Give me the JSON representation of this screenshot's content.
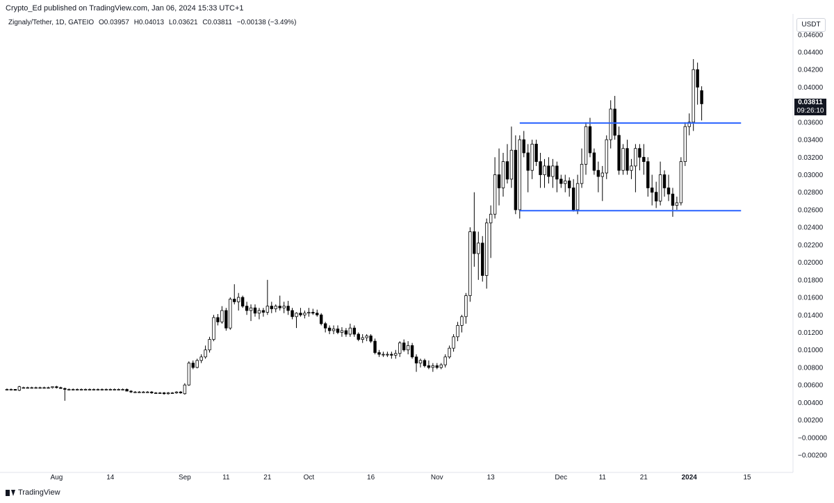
{
  "header": {
    "publisher_line": "Crypto_Ed published on TradingView.com, Jan 06, 2024 15:33 UTC+1"
  },
  "legend": {
    "symbol": "Zignaly/Tether, 1D, GATEIO",
    "open": "O0.03957",
    "high": "H0.04013",
    "low": "L0.03621",
    "close": "C0.03811",
    "change": "−0.00138 (−3.49%)"
  },
  "price_axis": {
    "currency": "USDT",
    "current_price": "0.03811",
    "countdown": "09:26:10"
  },
  "footer": {
    "brand": "TradingView"
  },
  "colors": {
    "rectangle": "#2962ff",
    "candle_up": "#ffffff",
    "candle_down": "#000000",
    "wick": "#000000"
  },
  "chart_data": {
    "type": "candlestick",
    "y_ticks": [
      "0.04600",
      "0.04400",
      "0.04200",
      "0.04000",
      "0.03800",
      "0.03600",
      "0.03400",
      "0.03200",
      "0.03000",
      "0.02800",
      "0.02600",
      "0.02400",
      "0.02200",
      "0.02000",
      "0.01800",
      "0.01600",
      "0.01400",
      "0.01200",
      "0.01000",
      "0.00800",
      "0.00600",
      "0.00400",
      "0.00200",
      "−0.00000",
      "−0.00200"
    ],
    "y_tick_values": [
      0.046,
      0.044,
      0.042,
      0.04,
      0.038,
      0.036,
      0.034,
      0.032,
      0.03,
      0.028,
      0.026,
      0.024,
      0.022,
      0.02,
      0.018,
      0.016,
      0.014,
      0.012,
      0.01,
      0.008,
      0.006,
      0.004,
      0.002,
      0.0,
      -0.002
    ],
    "ylim": [
      -0.0025,
      0.0475
    ],
    "x_ticks": [
      {
        "label": "Aug",
        "index": 12
      },
      {
        "label": "14",
        "index": 25
      },
      {
        "label": "Sep",
        "index": 43
      },
      {
        "label": "11",
        "index": 53
      },
      {
        "label": "21",
        "index": 63
      },
      {
        "label": "Oct",
        "index": 73
      },
      {
        "label": "16",
        "index": 88
      },
      {
        "label": "Nov",
        "index": 104
      },
      {
        "label": "13",
        "index": 117
      },
      {
        "label": "Dec",
        "index": 134
      },
      {
        "label": "11",
        "index": 144
      },
      {
        "label": "21",
        "index": 154
      },
      {
        "label": "2024",
        "index": 165
      },
      {
        "label": "15",
        "index": 179
      }
    ],
    "rectangle": {
      "top": 0.0359,
      "bottom": 0.0259,
      "start_index": 124,
      "end_index": 175
    },
    "candles": [
      [
        0.0055,
        0.0056,
        0.0054,
        0.0055
      ],
      [
        0.0055,
        0.0056,
        0.0054,
        0.0055
      ],
      [
        0.0055,
        0.0055,
        0.0054,
        0.0054
      ],
      [
        0.0054,
        0.0059,
        0.0053,
        0.0058
      ],
      [
        0.0057,
        0.0058,
        0.0056,
        0.0057
      ],
      [
        0.0057,
        0.0058,
        0.0056,
        0.0057
      ],
      [
        0.0057,
        0.0058,
        0.0056,
        0.0057
      ],
      [
        0.0057,
        0.0058,
        0.0056,
        0.0057
      ],
      [
        0.0057,
        0.0058,
        0.0056,
        0.0057
      ],
      [
        0.0057,
        0.0058,
        0.0056,
        0.0057
      ],
      [
        0.0057,
        0.0058,
        0.0056,
        0.0057
      ],
      [
        0.0057,
        0.0058,
        0.0056,
        0.0058
      ],
      [
        0.0058,
        0.0059,
        0.0056,
        0.0057
      ],
      [
        0.0057,
        0.0058,
        0.0056,
        0.0056
      ],
      [
        0.0056,
        0.0057,
        0.0042,
        0.0055
      ],
      [
        0.0055,
        0.0056,
        0.0054,
        0.0055
      ],
      [
        0.0055,
        0.0056,
        0.0054,
        0.0055
      ],
      [
        0.0055,
        0.0056,
        0.0054,
        0.0055
      ],
      [
        0.0055,
        0.0056,
        0.0054,
        0.0055
      ],
      [
        0.0055,
        0.0056,
        0.0054,
        0.0055
      ],
      [
        0.0055,
        0.0056,
        0.0054,
        0.0055
      ],
      [
        0.0055,
        0.0056,
        0.0054,
        0.0055
      ],
      [
        0.0055,
        0.0056,
        0.0054,
        0.0055
      ],
      [
        0.0055,
        0.0056,
        0.0054,
        0.0055
      ],
      [
        0.0055,
        0.0056,
        0.0054,
        0.0055
      ],
      [
        0.0055,
        0.0056,
        0.0054,
        0.0055
      ],
      [
        0.0055,
        0.0056,
        0.0054,
        0.0055
      ],
      [
        0.0055,
        0.0056,
        0.0054,
        0.0055
      ],
      [
        0.0055,
        0.0056,
        0.0054,
        0.0055
      ],
      [
        0.0055,
        0.0056,
        0.0053,
        0.0053
      ],
      [
        0.0053,
        0.0054,
        0.0051,
        0.0052
      ],
      [
        0.0052,
        0.0053,
        0.0051,
        0.0052
      ],
      [
        0.0052,
        0.0053,
        0.0051,
        0.0052
      ],
      [
        0.0052,
        0.0053,
        0.0051,
        0.0052
      ],
      [
        0.0052,
        0.0053,
        0.0051,
        0.0052
      ],
      [
        0.0052,
        0.0053,
        0.005,
        0.0051
      ],
      [
        0.0051,
        0.0052,
        0.005,
        0.0051
      ],
      [
        0.0051,
        0.0052,
        0.005,
        0.0051
      ],
      [
        0.0051,
        0.0052,
        0.0049,
        0.005
      ],
      [
        0.005,
        0.0052,
        0.0049,
        0.0051
      ],
      [
        0.0051,
        0.0052,
        0.005,
        0.0051
      ],
      [
        0.0051,
        0.0053,
        0.005,
        0.0052
      ],
      [
        0.0052,
        0.0053,
        0.005,
        0.0051
      ],
      [
        0.005,
        0.0062,
        0.0049,
        0.006
      ],
      [
        0.006,
        0.0087,
        0.0059,
        0.0085
      ],
      [
        0.0085,
        0.0088,
        0.0078,
        0.008
      ],
      [
        0.008,
        0.009,
        0.0079,
        0.0088
      ],
      [
        0.0088,
        0.0095,
        0.0085,
        0.0092
      ],
      [
        0.0092,
        0.0105,
        0.009,
        0.01
      ],
      [
        0.01,
        0.0115,
        0.0097,
        0.0112
      ],
      [
        0.0112,
        0.014,
        0.011,
        0.0137
      ],
      [
        0.0137,
        0.0141,
        0.0128,
        0.0132
      ],
      [
        0.0132,
        0.015,
        0.013,
        0.0145
      ],
      [
        0.0145,
        0.0148,
        0.0122,
        0.0125
      ],
      [
        0.0125,
        0.016,
        0.0123,
        0.0158
      ],
      [
        0.0158,
        0.0175,
        0.0152,
        0.0155
      ],
      [
        0.0155,
        0.0165,
        0.0145,
        0.016
      ],
      [
        0.016,
        0.0162,
        0.0148,
        0.015
      ],
      [
        0.015,
        0.0155,
        0.014,
        0.0145
      ],
      [
        0.0145,
        0.0152,
        0.0133,
        0.0148
      ],
      [
        0.0148,
        0.0152,
        0.0138,
        0.0142
      ],
      [
        0.0142,
        0.0148,
        0.0135,
        0.0145
      ],
      [
        0.0145,
        0.0148,
        0.0138,
        0.0143
      ],
      [
        0.0143,
        0.018,
        0.014,
        0.015
      ],
      [
        0.015,
        0.0155,
        0.0142,
        0.0147
      ],
      [
        0.0147,
        0.0152,
        0.0143,
        0.015
      ],
      [
        0.015,
        0.0162,
        0.0145,
        0.0148
      ],
      [
        0.0148,
        0.0155,
        0.0142,
        0.015
      ],
      [
        0.015,
        0.0156,
        0.014,
        0.0145
      ],
      [
        0.0145,
        0.0148,
        0.0135,
        0.0138
      ],
      [
        0.0138,
        0.0143,
        0.0125,
        0.0142
      ],
      [
        0.0142,
        0.0148,
        0.0138,
        0.014
      ],
      [
        0.014,
        0.0145,
        0.0136,
        0.0142
      ],
      [
        0.0142,
        0.0148,
        0.0138,
        0.0143
      ],
      [
        0.0143,
        0.0147,
        0.014,
        0.0142
      ],
      [
        0.0142,
        0.0146,
        0.0138,
        0.014
      ],
      [
        0.014,
        0.0142,
        0.0128,
        0.013
      ],
      [
        0.013,
        0.0132,
        0.012,
        0.0125
      ],
      [
        0.0125,
        0.0128,
        0.0118,
        0.0122
      ],
      [
        0.0122,
        0.0128,
        0.0118,
        0.0124
      ],
      [
        0.0124,
        0.0128,
        0.0118,
        0.012
      ],
      [
        0.012,
        0.0126,
        0.0115,
        0.0122
      ],
      [
        0.0122,
        0.0125,
        0.0115,
        0.0118
      ],
      [
        0.0118,
        0.013,
        0.0115,
        0.0125
      ],
      [
        0.0125,
        0.0128,
        0.0115,
        0.0118
      ],
      [
        0.0118,
        0.012,
        0.011,
        0.0112
      ],
      [
        0.0112,
        0.0118,
        0.0108,
        0.0114
      ],
      [
        0.0114,
        0.0118,
        0.011,
        0.0116
      ],
      [
        0.0116,
        0.0118,
        0.0108,
        0.011
      ],
      [
        0.011,
        0.0113,
        0.0095,
        0.0097
      ],
      [
        0.0097,
        0.01,
        0.0092,
        0.0095
      ],
      [
        0.0095,
        0.0098,
        0.0092,
        0.0095
      ],
      [
        0.0095,
        0.0098,
        0.0092,
        0.0095
      ],
      [
        0.0095,
        0.0098,
        0.009,
        0.0094
      ],
      [
        0.0094,
        0.01,
        0.009,
        0.0096
      ],
      [
        0.0096,
        0.011,
        0.0092,
        0.0108
      ],
      [
        0.0108,
        0.0112,
        0.0098,
        0.01
      ],
      [
        0.01,
        0.011,
        0.0095,
        0.0105
      ],
      [
        0.0105,
        0.0108,
        0.009,
        0.0092
      ],
      [
        0.0092,
        0.0095,
        0.0075,
        0.0085
      ],
      [
        0.0085,
        0.009,
        0.008,
        0.0088
      ],
      [
        0.0088,
        0.009,
        0.008,
        0.0082
      ],
      [
        0.0082,
        0.0088,
        0.0078,
        0.008
      ],
      [
        0.008,
        0.0085,
        0.0075,
        0.0082
      ],
      [
        0.0082,
        0.0085,
        0.0078,
        0.008
      ],
      [
        0.008,
        0.0085,
        0.0078,
        0.0083
      ],
      [
        0.0083,
        0.0095,
        0.008,
        0.0092
      ],
      [
        0.0092,
        0.0105,
        0.009,
        0.0102
      ],
      [
        0.0102,
        0.0118,
        0.0098,
        0.0115
      ],
      [
        0.0115,
        0.0132,
        0.011,
        0.0128
      ],
      [
        0.0128,
        0.014,
        0.012,
        0.0138
      ],
      [
        0.0138,
        0.0165,
        0.013,
        0.0162
      ],
      [
        0.0162,
        0.024,
        0.0155,
        0.0235
      ],
      [
        0.0235,
        0.028,
        0.0195,
        0.021
      ],
      [
        0.021,
        0.0235,
        0.018,
        0.0222
      ],
      [
        0.0222,
        0.023,
        0.0178,
        0.0185
      ],
      [
        0.0185,
        0.025,
        0.017,
        0.0245
      ],
      [
        0.0245,
        0.0265,
        0.0205,
        0.0255
      ],
      [
        0.0255,
        0.032,
        0.025,
        0.03
      ],
      [
        0.03,
        0.033,
        0.0265,
        0.0285
      ],
      [
        0.0285,
        0.0325,
        0.0275,
        0.0315
      ],
      [
        0.0315,
        0.0335,
        0.029,
        0.0295
      ],
      [
        0.0295,
        0.0355,
        0.0285,
        0.0328
      ],
      [
        0.0328,
        0.0345,
        0.0255,
        0.026
      ],
      [
        0.026,
        0.0345,
        0.025,
        0.034
      ],
      [
        0.034,
        0.035,
        0.032,
        0.0325
      ],
      [
        0.0325,
        0.0335,
        0.028,
        0.0305
      ],
      [
        0.0305,
        0.034,
        0.0295,
        0.0335
      ],
      [
        0.0335,
        0.034,
        0.031,
        0.0315
      ],
      [
        0.0315,
        0.0325,
        0.0285,
        0.03
      ],
      [
        0.03,
        0.0318,
        0.0285,
        0.031
      ],
      [
        0.031,
        0.032,
        0.029,
        0.0298
      ],
      [
        0.0298,
        0.0318,
        0.0285,
        0.031
      ],
      [
        0.031,
        0.0315,
        0.028,
        0.0295
      ],
      [
        0.0295,
        0.03,
        0.0285,
        0.029
      ],
      [
        0.029,
        0.03,
        0.028,
        0.0293
      ],
      [
        0.0293,
        0.0297,
        0.0275,
        0.0285
      ],
      [
        0.0285,
        0.0295,
        0.0258,
        0.026
      ],
      [
        0.026,
        0.03,
        0.0255,
        0.029
      ],
      [
        0.029,
        0.033,
        0.0285,
        0.0312
      ],
      [
        0.0312,
        0.036,
        0.03,
        0.0355
      ],
      [
        0.0355,
        0.0365,
        0.032,
        0.0325
      ],
      [
        0.0325,
        0.033,
        0.03,
        0.0305
      ],
      [
        0.0305,
        0.0315,
        0.028,
        0.0298
      ],
      [
        0.0298,
        0.031,
        0.027,
        0.0302
      ],
      [
        0.0302,
        0.0345,
        0.0295,
        0.034
      ],
      [
        0.034,
        0.0385,
        0.033,
        0.0375
      ],
      [
        0.0375,
        0.039,
        0.034,
        0.0345
      ],
      [
        0.0345,
        0.0355,
        0.03,
        0.0305
      ],
      [
        0.0305,
        0.0335,
        0.03,
        0.033
      ],
      [
        0.033,
        0.034,
        0.03,
        0.0305
      ],
      [
        0.0305,
        0.0318,
        0.0295,
        0.031
      ],
      [
        0.031,
        0.0335,
        0.028,
        0.033
      ],
      [
        0.033,
        0.0335,
        0.0305,
        0.032
      ],
      [
        0.032,
        0.0335,
        0.03,
        0.0315
      ],
      [
        0.0315,
        0.032,
        0.0275,
        0.0285
      ],
      [
        0.0285,
        0.03,
        0.0265,
        0.028
      ],
      [
        0.028,
        0.0292,
        0.0262,
        0.027
      ],
      [
        0.027,
        0.0315,
        0.0265,
        0.03
      ],
      [
        0.03,
        0.0305,
        0.0275,
        0.0285
      ],
      [
        0.0285,
        0.03,
        0.027,
        0.0278
      ],
      [
        0.0278,
        0.0285,
        0.0252,
        0.0265
      ],
      [
        0.0265,
        0.0275,
        0.026,
        0.0268
      ],
      [
        0.0268,
        0.032,
        0.0265,
        0.0315
      ],
      [
        0.0315,
        0.036,
        0.031,
        0.0355
      ],
      [
        0.0355,
        0.037,
        0.0345,
        0.036
      ],
      [
        0.036,
        0.0432,
        0.035,
        0.042
      ],
      [
        0.042,
        0.0428,
        0.038,
        0.04
      ],
      [
        0.0396,
        0.0401,
        0.0362,
        0.0381
      ]
    ]
  }
}
